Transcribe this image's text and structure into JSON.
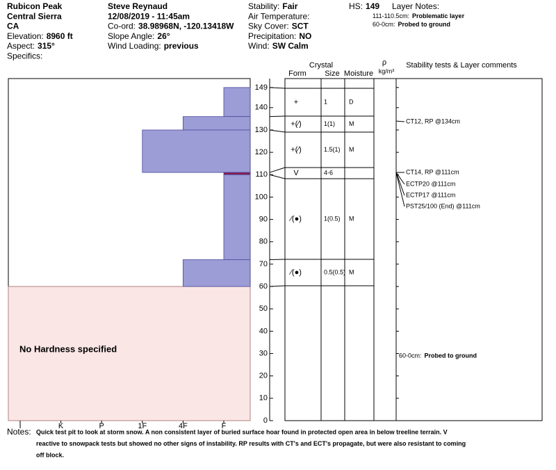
{
  "header": {
    "columns": [
      [
        {
          "value": "Rubicon Peak"
        },
        {
          "value": "Central Sierra"
        },
        {
          "value": "CA"
        },
        {
          "label": "Elevation:",
          "value": "8960 ft"
        },
        {
          "label": "Aspect:",
          "value": "315°"
        },
        {
          "label": "Specifics:"
        }
      ],
      [
        {
          "value": "Steve Reynaud"
        },
        {
          "value": "12/08/2019 - 11:45am"
        },
        {
          "label": "Co-ord:",
          "value": "38.98968N, -120.13418W"
        },
        {
          "label": "Slope Angle:",
          "value": "26°"
        },
        {
          "label": "Wind Loading:",
          "value": "previous"
        }
      ],
      [
        {
          "label": "Stability:",
          "value": "Fair"
        },
        {
          "label": "Air Temperature:"
        },
        {
          "label": "Sky Cover:",
          "value": "SCT"
        },
        {
          "label": "Precipitation:",
          "value": "NO"
        },
        {
          "label": "Wind:",
          "value": "SW Calm"
        }
      ]
    ],
    "hs": {
      "label": "HS:",
      "value": "149"
    },
    "layer_notes": {
      "title": "Layer Notes:",
      "items": [
        {
          "label": "111-110.5cm:",
          "value": "Problematic layer"
        },
        {
          "label": "60-0cm:",
          "value": "Probed to ground"
        }
      ]
    }
  },
  "profile": {
    "ylim": [
      0,
      153
    ],
    "yticks": [
      0,
      10,
      20,
      30,
      40,
      50,
      60,
      70,
      80,
      90,
      100,
      110,
      120,
      130,
      140,
      149
    ],
    "hardness_categories": [
      "I",
      "K",
      "P",
      "1F",
      "4F",
      "F"
    ],
    "columns": {
      "crystal": "Crystal",
      "form": "Form",
      "size": "Size",
      "moisture": "Moisture",
      "density": "ρ",
      "density_unit": "kg/m³",
      "comments": "Stability tests & Layer comments"
    },
    "layers": [
      {
        "top": 149,
        "bottom": 136,
        "hardness": "F",
        "color": "#9c9cd6",
        "form": "+",
        "size": "1",
        "moisture": "D"
      },
      {
        "top": 136,
        "bottom": 130,
        "hardness": "4F",
        "color": "#9c9cd6",
        "form": "+(⁄)",
        "size": "1(1)",
        "moisture": "M"
      },
      {
        "top": 130,
        "bottom": 111,
        "hardness": "1F",
        "color": "#9c9cd6",
        "form": "+(⁄)",
        "size": "1.5(1)",
        "moisture": "M"
      },
      {
        "top": 111,
        "bottom": 110,
        "hardness": "F",
        "color": "#8b1a4a",
        "form": "V",
        "size": "4-6",
        "moisture": ""
      },
      {
        "top": 110,
        "bottom": 72,
        "hardness": "F",
        "color": "#9c9cd6",
        "form": "⁄(●)",
        "size": "1(0.5)",
        "moisture": "M"
      },
      {
        "top": 72,
        "bottom": 60,
        "hardness": "4F",
        "color": "#9c9cd6",
        "form": "⁄(●)",
        "size": "0.5(0.5)",
        "moisture": "M"
      }
    ],
    "no_hardness": {
      "top": 60,
      "bottom": 0,
      "label": "No Hardness specified"
    },
    "tests": [
      {
        "depth": 134,
        "text": "CT12, RP @134cm"
      },
      {
        "depth": 111,
        "text": "CT14, RP @111cm"
      },
      {
        "depth": 111,
        "text": "ECTP20 @111cm"
      },
      {
        "depth": 111,
        "text": "ECTP17 @111cm"
      },
      {
        "depth": 111,
        "text": "PST25/100 (End) @111cm"
      }
    ],
    "comment": {
      "depth": 30,
      "label": "60-0cm:",
      "value": "Probed to ground"
    }
  },
  "notes": {
    "label": "Notes:",
    "lines": [
      "Quick test pit to look at storm snow.  A non consistent layer of buried surface hoar found in protected open area in below treeline terrain.  V",
      "reactive to snowpack tests but showed no other signs of instability.  RP results with CT's and ECT's propagate, but were also resistant to coming",
      "off block."
    ]
  }
}
